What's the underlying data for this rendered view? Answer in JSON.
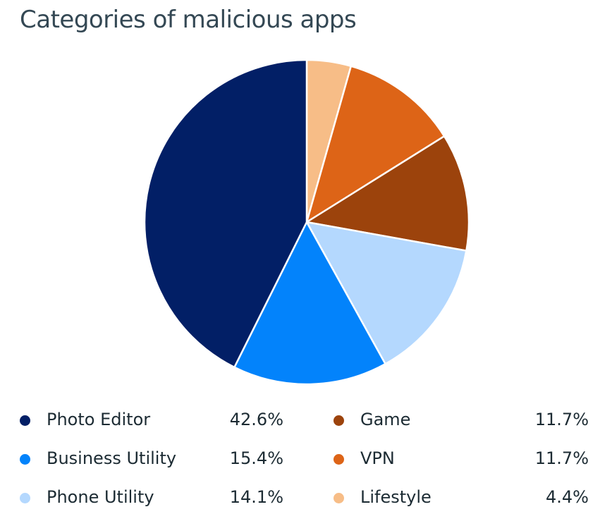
{
  "chart_data": {
    "type": "pie",
    "title": "Categories of malicious apps",
    "slices": [
      {
        "name": "Lifestyle",
        "value": 4.4,
        "label": "4.4%",
        "color": "#f7bd87"
      },
      {
        "name": "VPN",
        "value": 11.7,
        "label": "11.7%",
        "color": "#dd6417"
      },
      {
        "name": "Game",
        "value": 11.7,
        "label": "11.7%",
        "color": "#9c430c"
      },
      {
        "name": "Phone Utility",
        "value": 14.1,
        "label": "14.1%",
        "color": "#b4d8fe"
      },
      {
        "name": "Business Utility",
        "value": 15.4,
        "label": "15.4%",
        "color": "#0383fb"
      },
      {
        "name": "Photo Editor",
        "value": 42.6,
        "label": "42.6%",
        "color": "#021f66"
      }
    ],
    "legend": {
      "placement": "bottom",
      "columns": [
        [
          "Photo Editor",
          "Business Utility",
          "Phone Utility"
        ],
        [
          "Game",
          "VPN",
          "Lifestyle"
        ]
      ]
    }
  }
}
